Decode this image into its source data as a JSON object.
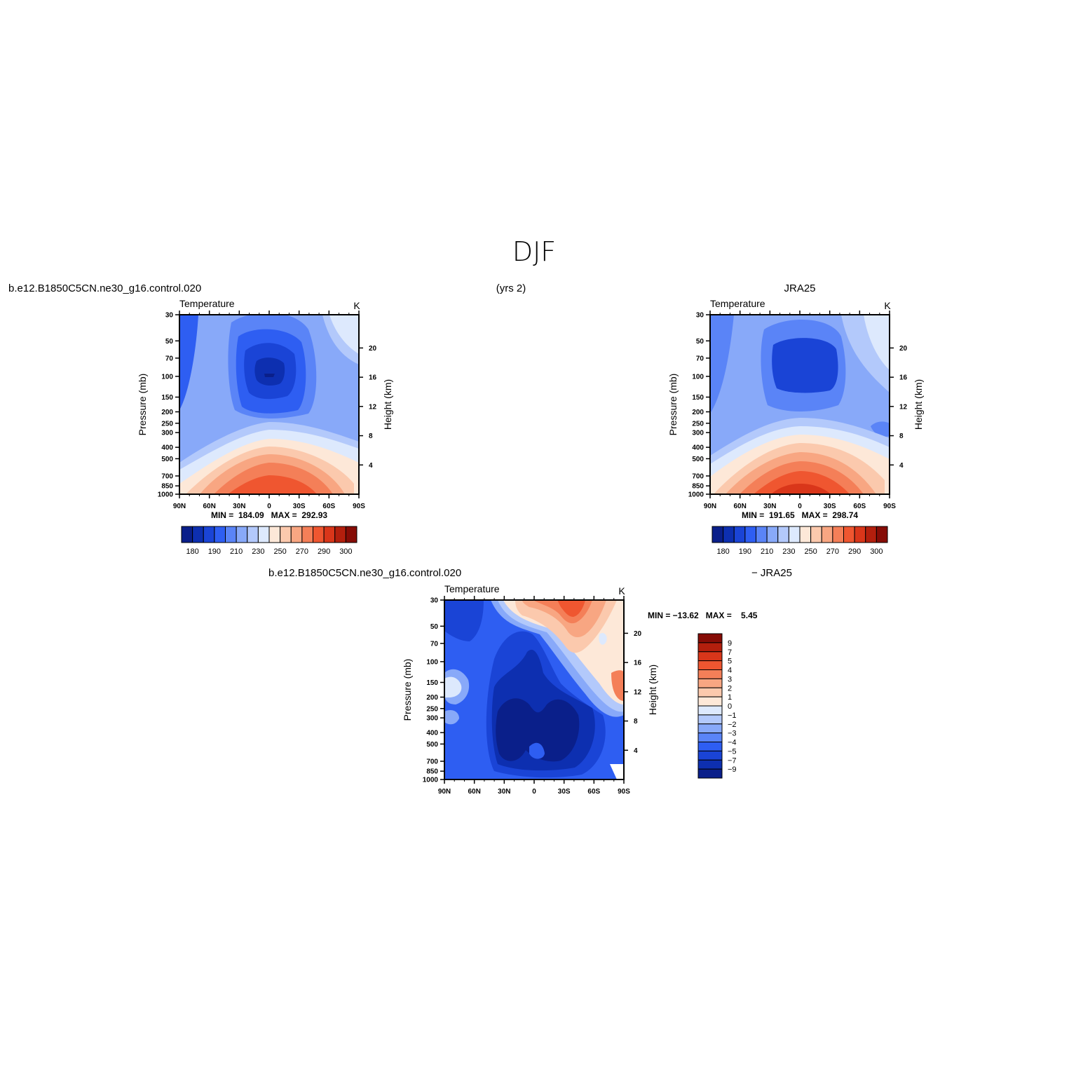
{
  "title": "DJF",
  "panel_a": {
    "left_title": "b.e12.B1850C5CN.ne30_g16.control.020",
    "center_title": "(yrs 2)",
    "variable": "Temperature",
    "units": "K",
    "minmax": "MIN =  184.09   MAX =  292.93"
  },
  "panel_b": {
    "right_title": "JRA25",
    "variable": "Temperature",
    "units": "K",
    "minmax": "MIN =  191.65   MAX =  298.74"
  },
  "panel_c": {
    "left_title": "b.e12.B1850C5CN.ne30_g16.control.020",
    "right_title": "− JRA25",
    "variable": "Temperature",
    "units": "K",
    "minmax": "MIN = −13.62   MAX =    5.45"
  },
  "axes": {
    "ylabel": "Pressure  (mb)",
    "y2label": "Height  (km)",
    "pressure_ticks": [
      "30",
      "50",
      "70",
      "100",
      "150",
      "200",
      "250",
      "300",
      "400",
      "500",
      "700",
      "850",
      "1000"
    ],
    "height_ticks": [
      "20",
      "16",
      "12",
      "8",
      "4"
    ],
    "lat_ticks": [
      "90N",
      "60N",
      "30N",
      "0",
      "30S",
      "60S",
      "90S"
    ]
  },
  "colorbar_main": {
    "labels": [
      "180",
      "190",
      "210",
      "230",
      "250",
      "270",
      "290",
      "300"
    ],
    "colors": [
      "#0a1f8a",
      "#0d2fb0",
      "#1a44d6",
      "#2e5ef2",
      "#5a84f7",
      "#88a9f9",
      "#b3c9fb",
      "#dde9fd",
      "#fde8d8",
      "#fbc9ad",
      "#f8a682",
      "#f47f58",
      "#ef5630",
      "#d9361a",
      "#b31f0d",
      "#860c06"
    ]
  },
  "colorbar_diff": {
    "labels": [
      "9",
      "7",
      "5",
      "4",
      "3",
      "2",
      "1",
      "0",
      "−1",
      "−2",
      "−3",
      "−4",
      "−5",
      "−7",
      "−9"
    ],
    "colors": [
      "#860c06",
      "#b31f0d",
      "#d9361a",
      "#ef5630",
      "#f47f58",
      "#f8a682",
      "#fbc9ad",
      "#fde8d8",
      "#dde9fd",
      "#b3c9fb",
      "#88a9f9",
      "#5a84f7",
      "#2e5ef2",
      "#1a44d6",
      "#0d2fb0",
      "#0a1f8a"
    ]
  },
  "chart_data": [
    {
      "type": "heatmap",
      "title": "Temperature",
      "subtitle": "b.e12.B1850C5CN.ne30_g16.control.020 (yrs 2)",
      "xlabel": "",
      "ylabel": "Pressure  (mb)",
      "y2label": "Height  (km)",
      "units": "K",
      "x": [
        "90N",
        "60N",
        "30N",
        "0",
        "30S",
        "60S",
        "90S"
      ],
      "y": [
        30,
        50,
        70,
        100,
        150,
        200,
        250,
        300,
        400,
        500,
        700,
        850,
        1000
      ],
      "min": 184.09,
      "max": 292.93,
      "y_scale": "log"
    },
    {
      "type": "heatmap",
      "title": "Temperature",
      "subtitle": "JRA25",
      "xlabel": "",
      "ylabel": "Pressure  (mb)",
      "y2label": "Height  (km)",
      "units": "K",
      "x": [
        "90N",
        "60N",
        "30N",
        "0",
        "30S",
        "60S",
        "90S"
      ],
      "y": [
        30,
        50,
        70,
        100,
        150,
        200,
        250,
        300,
        400,
        500,
        700,
        850,
        1000
      ],
      "min": 191.65,
      "max": 298.74,
      "y_scale": "log"
    },
    {
      "type": "heatmap",
      "title": "Temperature",
      "subtitle": "b.e12.B1850C5CN.ne30_g16.control.020 − JRA25",
      "xlabel": "",
      "ylabel": "Pressure  (mb)",
      "y2label": "Height  (km)",
      "units": "K",
      "x": [
        "90N",
        "60N",
        "30N",
        "0",
        "30S",
        "60S",
        "90S"
      ],
      "y": [
        30,
        50,
        70,
        100,
        150,
        200,
        250,
        300,
        400,
        500,
        700,
        850,
        1000
      ],
      "min": -13.62,
      "max": 5.45,
      "y_scale": "log"
    }
  ]
}
